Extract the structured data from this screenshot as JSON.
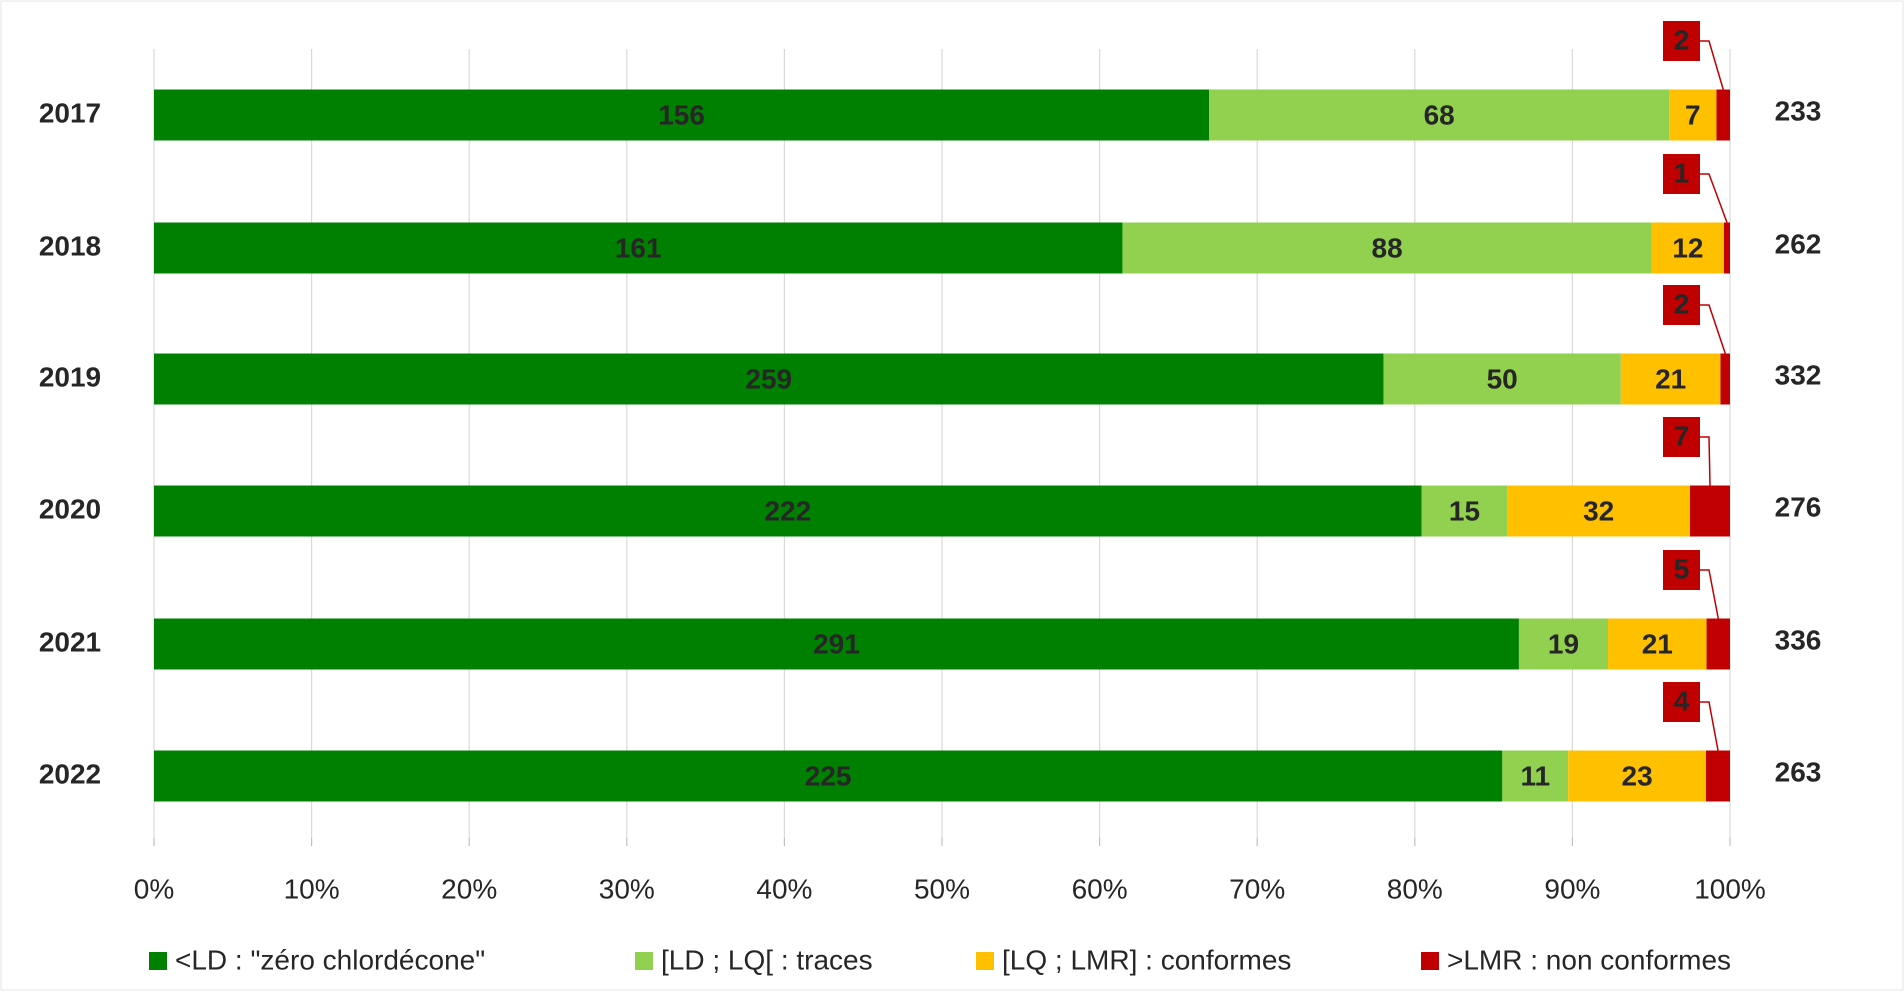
{
  "chart_data": {
    "type": "stacked-bar-100",
    "categories": [
      "2017",
      "2018",
      "2019",
      "2020",
      "2021",
      "2022"
    ],
    "series": [
      {
        "name": "<LD : \"zéro chlordécone\"",
        "color": "#008000",
        "values": [
          156,
          161,
          259,
          222,
          291,
          225
        ]
      },
      {
        "name": "[LD ; LQ[ : traces",
        "color": "#92d050",
        "values": [
          68,
          88,
          50,
          15,
          19,
          11
        ]
      },
      {
        "name": "[LQ ; LMR] : conformes",
        "color": "#ffc000",
        "values": [
          7,
          12,
          21,
          32,
          21,
          23
        ]
      },
      {
        "name": ">LMR : non conformes",
        "color": "#c00000",
        "values": [
          2,
          1,
          2,
          7,
          5,
          4
        ]
      }
    ],
    "totals": [
      233,
      262,
      332,
      276,
      336,
      263
    ],
    "xlim": [
      0,
      100
    ],
    "xticks": [
      {
        "value": 0,
        "label": "0%"
      },
      {
        "value": 10,
        "label": "10%"
      },
      {
        "value": 20,
        "label": "20%"
      },
      {
        "value": 30,
        "label": "30%"
      },
      {
        "value": 40,
        "label": "40%"
      },
      {
        "value": 50,
        "label": "50%"
      },
      {
        "value": 60,
        "label": "60%"
      },
      {
        "value": 70,
        "label": "70%"
      },
      {
        "value": 80,
        "label": "80%"
      },
      {
        "value": 90,
        "label": "90%"
      },
      {
        "value": 100,
        "label": "100%"
      }
    ],
    "grid": true,
    "legend": "bottom"
  }
}
